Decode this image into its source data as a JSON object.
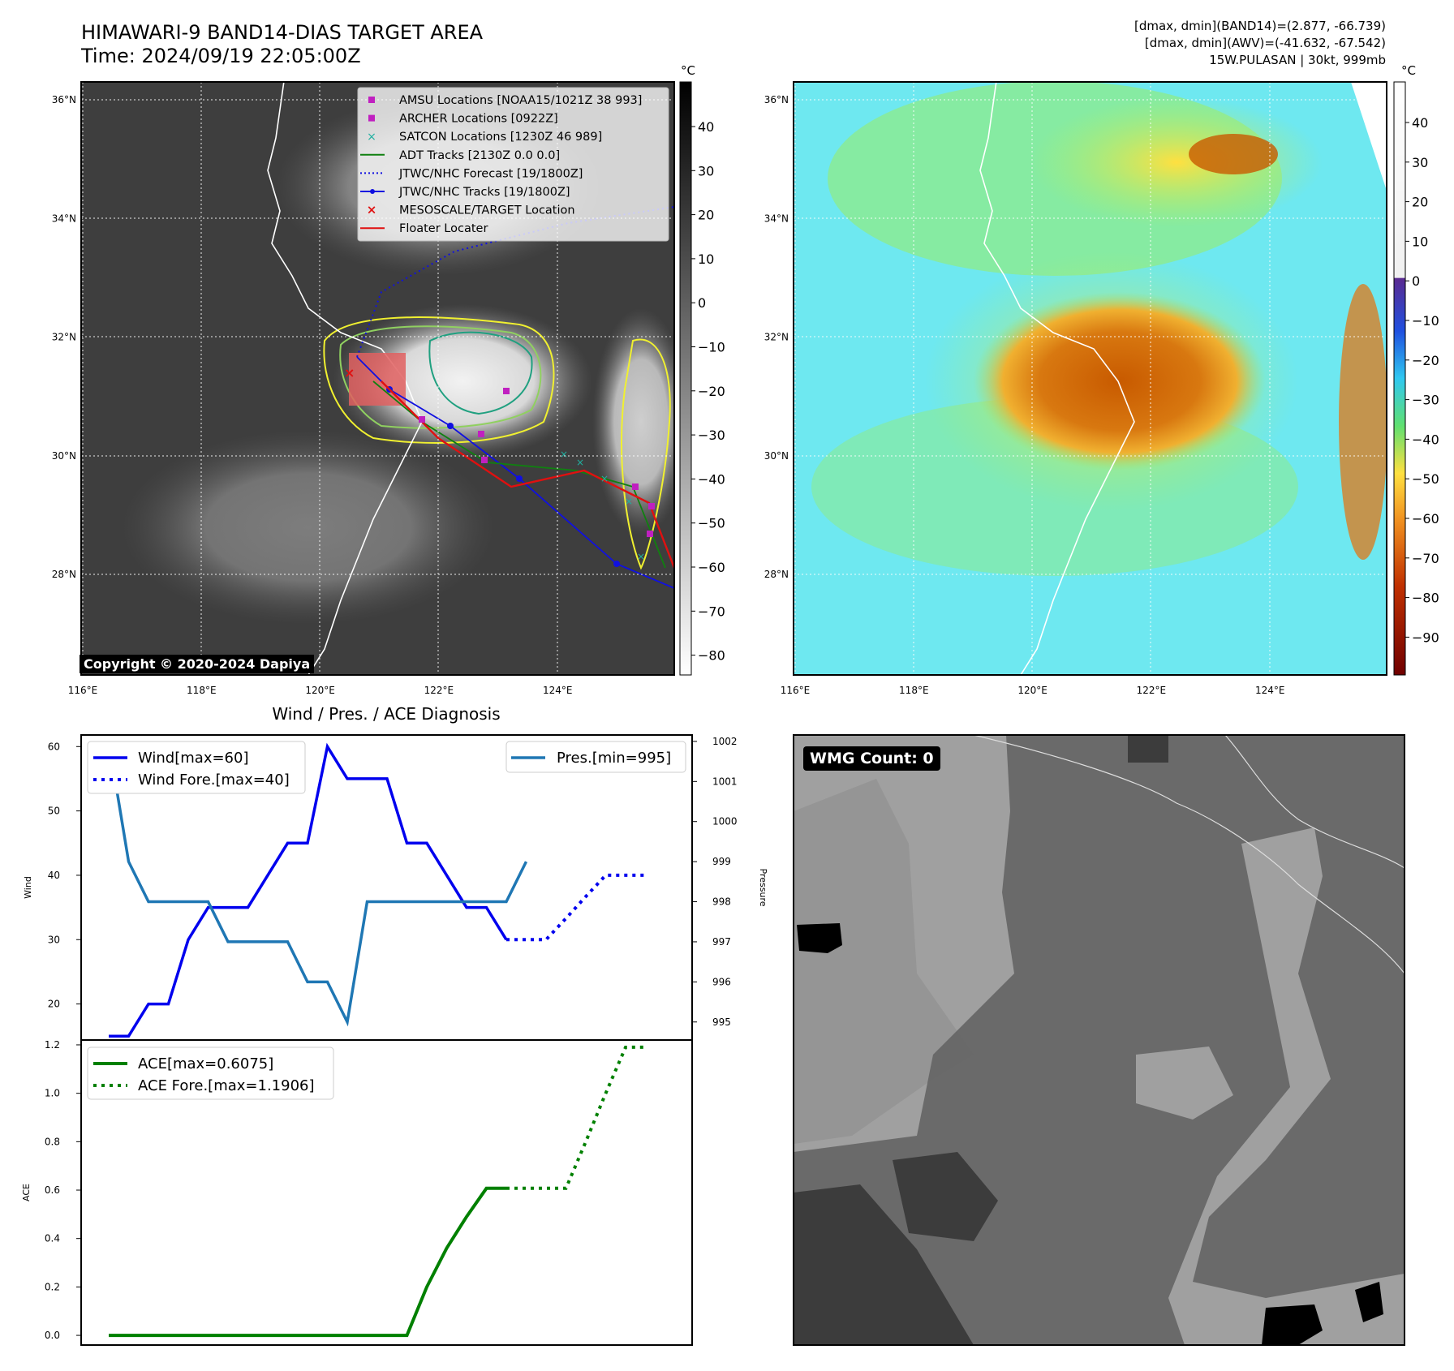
{
  "header": {
    "title_line1": "HIMAWARI-9 BAND14-DIAS TARGET AREA",
    "title_line2": "Time: 2024/09/19 22:05:00Z",
    "info_line1": "[dmax, dmin](BAND14)=(2.877, -66.739)",
    "info_line2": "[dmax, dmin](AWV)=(-41.632, -67.542)",
    "info_line3": "15W.PULASAN | 30kt, 999mb"
  },
  "copyright": "Copyright © 2020-2024 Dapiya",
  "wmg_label": "WMG Count: 0",
  "colorbar_unit": "°C",
  "maps": {
    "lon_labels": [
      "116°E",
      "118°E",
      "120°E",
      "122°E",
      "124°E"
    ],
    "lat_labels": [
      "36°N",
      "34°N",
      "32°N",
      "30°N",
      "28°N"
    ],
    "cbar_gray_ticks": [
      "40",
      "30",
      "20",
      "10",
      "0",
      "−10",
      "−20",
      "−30",
      "−40",
      "−50",
      "−60",
      "−70",
      "−80"
    ],
    "cbar_color_ticks": [
      "40",
      "30",
      "20",
      "10",
      "0",
      "−10",
      "−20",
      "−30",
      "−40",
      "−50",
      "−60",
      "−70",
      "−80",
      "−90"
    ],
    "legend": [
      {
        "label": "AMSU Locations [NOAA15/1021Z 38 993]",
        "color": "#c020c0"
      },
      {
        "label": "ARCHER Locations [0922Z]",
        "color": "#c020c0"
      },
      {
        "label": "SATCON Locations [1230Z 46 989]",
        "color": "#20b0a0"
      },
      {
        "label": "ADT Tracks [2130Z 0.0 0.0]",
        "color": "#108010"
      },
      {
        "label": "JTWC/NHC Forecast [19/1800Z]",
        "color": "#1010e0"
      },
      {
        "label": "JTWC/NHC Tracks [19/1800Z]",
        "color": "#1010e0"
      },
      {
        "label": "MESOSCALE/TARGET Location",
        "color": "#e01010"
      },
      {
        "label": "Floater Locater",
        "color": "#e01010"
      }
    ]
  },
  "colors": {
    "wind": "#0000ee",
    "pressure": "#1f77b4",
    "ace": "#008000"
  },
  "chart_data": [
    {
      "type": "line",
      "title": "Wind / Pres. / ACE Diagnosis",
      "ylabel": "Wind",
      "ylabel_right": "Pressure",
      "ylim": [
        14.4,
        61.8
      ],
      "ylim_right": [
        994.55,
        1002.16
      ],
      "yticks": [
        20,
        30,
        40,
        50,
        60
      ],
      "yticks_right": [
        995,
        996,
        997,
        998,
        999,
        1000,
        1001,
        1002
      ],
      "series": [
        {
          "name": "Wind[max=60]",
          "style": "solid",
          "values": [
            15,
            15,
            20,
            20,
            30,
            35,
            35,
            35,
            40,
            45,
            45,
            60,
            55,
            55,
            55,
            45,
            45,
            40,
            35,
            35,
            30
          ]
        },
        {
          "name": "Wind Fore.[max=40]",
          "style": "dotted",
          "x_start": 20,
          "values": [
            30,
            30,
            30,
            33.3,
            36.7,
            40,
            40,
            40
          ]
        },
        {
          "name": "Pres.[min=995]",
          "style": "solid",
          "axis": "right",
          "values": [
            1002,
            999,
            998,
            998,
            998,
            998,
            997,
            997,
            997,
            997,
            996,
            996,
            995,
            998,
            998,
            998,
            998,
            998,
            998,
            998,
            998,
            999
          ]
        }
      ],
      "legend_left": [
        "Wind[max=60]",
        "Wind Fore.[max=40]"
      ],
      "legend_right": [
        "Pres.[min=995]"
      ]
    },
    {
      "type": "line",
      "ylabel": "ACE",
      "ylim": [
        -0.04,
        1.22
      ],
      "yticks": [
        "0.0",
        "0.2",
        "0.4",
        "0.6",
        "0.8",
        "1.0",
        "1.2"
      ],
      "series": [
        {
          "name": "ACE[max=0.6075]",
          "style": "solid",
          "values": [
            0,
            0,
            0,
            0,
            0,
            0,
            0,
            0,
            0,
            0,
            0,
            0,
            0,
            0,
            0,
            0,
            0.2,
            0.36,
            0.49,
            0.6075,
            0.6075
          ]
        },
        {
          "name": "ACE Fore.[max=1.1906]",
          "style": "dotted",
          "x_start": 20,
          "values": [
            0.6075,
            0.6075,
            0.6075,
            0.6075,
            0.8,
            1.0,
            1.19,
            1.1906
          ]
        }
      ]
    }
  ]
}
